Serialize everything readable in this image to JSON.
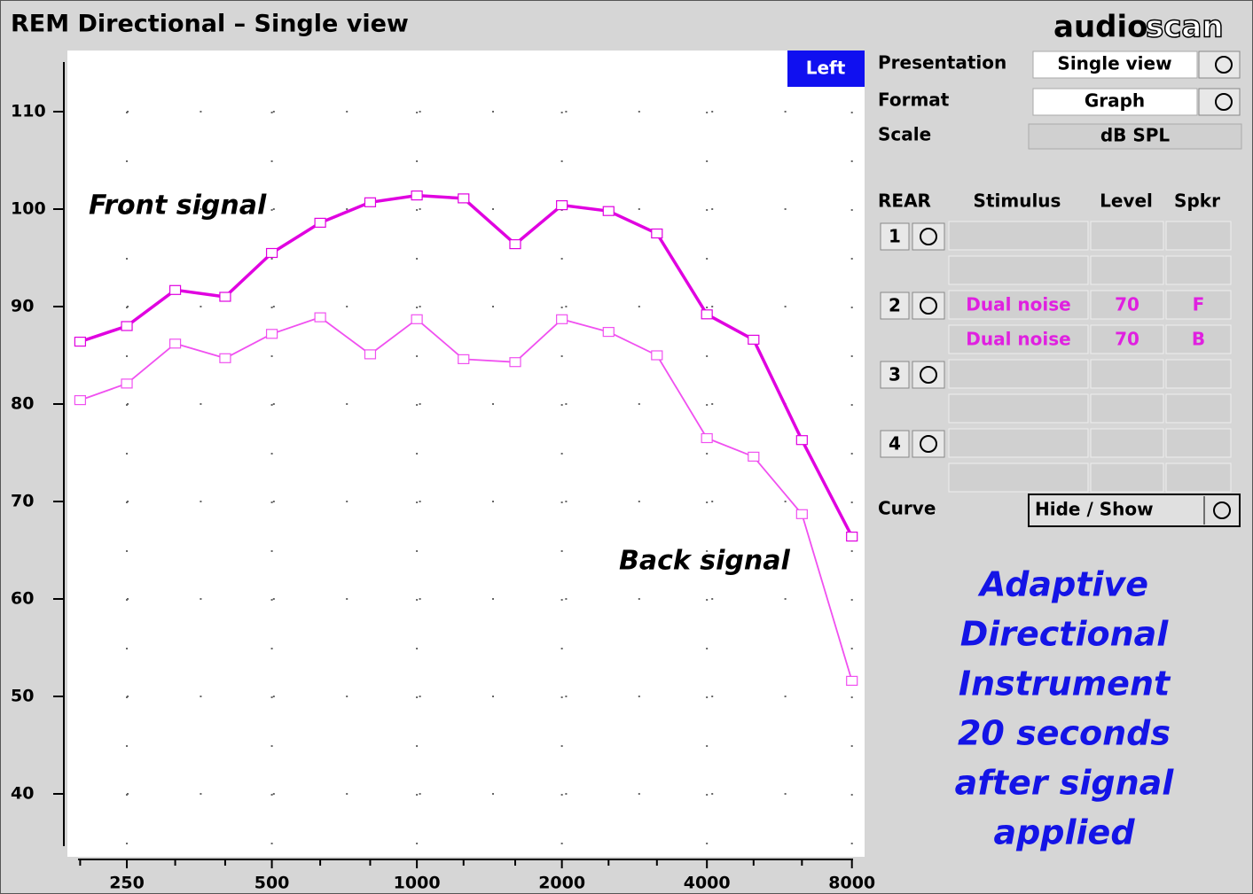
{
  "window": {
    "title": "REM Directional – Single view",
    "logo_left": "audio",
    "logo_right": "scan"
  },
  "badge": "Left",
  "chart_data": {
    "type": "line",
    "x": [
      200,
      250,
      315,
      400,
      500,
      630,
      800,
      1000,
      1250,
      1600,
      2000,
      2500,
      3150,
      4000,
      5000,
      6300,
      8000
    ],
    "xlim": [
      185,
      8500
    ],
    "xticks": [
      250,
      500,
      1000,
      2000,
      4000,
      8000
    ],
    "xminor_ticks": [
      200,
      315,
      400,
      630,
      800,
      1250,
      1600,
      2500,
      3150,
      5000,
      6300
    ],
    "x_log": true,
    "ylim": [
      34,
      116
    ],
    "yticks": [
      40,
      50,
      60,
      70,
      80,
      90,
      100,
      110
    ],
    "grid": true,
    "series": [
      {
        "name": "Front signal",
        "color": "#e000e0",
        "values": [
          86.4,
          88.0,
          91.7,
          91.0,
          95.5,
          98.6,
          100.7,
          101.4,
          101.1,
          96.4,
          100.4,
          99.8,
          97.5,
          89.2,
          86.6,
          76.3,
          66.4
        ]
      },
      {
        "name": "Back signal",
        "color": "#f050f0",
        "values": [
          80.4,
          82.1,
          86.2,
          84.7,
          87.2,
          88.9,
          85.1,
          88.7,
          84.6,
          84.3,
          88.7,
          87.4,
          85.0,
          76.5,
          74.6,
          68.7,
          51.6
        ]
      }
    ]
  },
  "controls": {
    "presentation": {
      "label": "Presentation",
      "value": "Single view"
    },
    "format": {
      "label": "Format",
      "value": "Graph"
    },
    "scale": {
      "label": "Scale",
      "value": "dB SPL"
    },
    "rear_headers": [
      "REAR",
      "Stimulus",
      "Level",
      "Spkr"
    ],
    "rear_rows": [
      {
        "number": "1"
      },
      {
        "number": "2",
        "lines": [
          [
            "Dual noise",
            70,
            "F"
          ],
          [
            "Dual noise",
            70,
            "B"
          ]
        ]
      },
      {
        "number": "3"
      },
      {
        "number": "4"
      }
    ],
    "curve": {
      "label": "Curve",
      "button": "Hide / Show"
    }
  },
  "note": [
    "Adaptive",
    "Directional",
    "Instrument",
    "20 seconds",
    "after signal",
    "applied"
  ]
}
